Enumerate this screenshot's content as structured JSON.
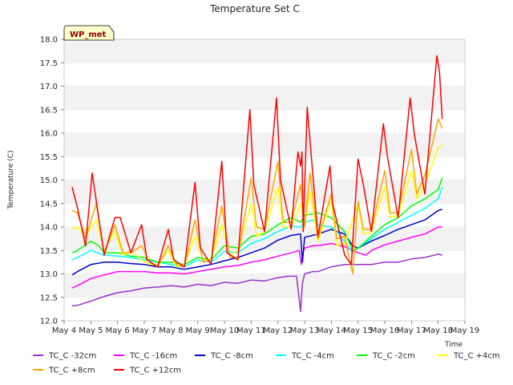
{
  "chart_data": {
    "type": "line",
    "title": "Temperature Set C",
    "xlabel": "Time",
    "ylabel": "Temperature (C)",
    "badge": "WP_met",
    "ylim": [
      12.0,
      18.0
    ],
    "xlim": [
      4,
      19
    ],
    "x_tick_labels": [
      "May 4",
      "May 5",
      "May 6",
      "May 7",
      "May 8",
      "May 9",
      "May 10",
      "May 11",
      "May 12",
      "May 13",
      "May 14",
      "May 15",
      "May 16",
      "May 17",
      "May 18",
      "May 19"
    ],
    "y_ticks": [
      12.0,
      12.5,
      13.0,
      13.5,
      14.0,
      14.5,
      15.0,
      15.5,
      16.0,
      16.5,
      17.0,
      17.5,
      18.0
    ],
    "y_tick_labels": [
      "12.0",
      "12.5",
      "13.0",
      "13.5",
      "14.0",
      "14.5",
      "15.0",
      "15.5",
      "16.0",
      "16.5",
      "17.0",
      "17.5",
      "18.0"
    ],
    "grid": "horizontal bands",
    "legend_position": "bottom",
    "x_unit": "day of May",
    "series": [
      {
        "name": "TC_C -32cm",
        "color": "#9933cc",
        "x": [
          4.3,
          4.5,
          5.0,
          5.5,
          6.0,
          6.5,
          7.0,
          7.5,
          8.0,
          8.5,
          9.0,
          9.5,
          10.0,
          10.5,
          11.0,
          11.5,
          12.0,
          12.4,
          12.7,
          12.85,
          12.92,
          13.0,
          13.3,
          13.5,
          14.0,
          14.5,
          15.0,
          15.5,
          16.0,
          16.5,
          17.0,
          17.5,
          18.0,
          18.15
        ],
        "y": [
          12.32,
          12.33,
          12.42,
          12.52,
          12.6,
          12.64,
          12.7,
          12.72,
          12.75,
          12.72,
          12.78,
          12.75,
          12.82,
          12.8,
          12.87,
          12.85,
          12.92,
          12.95,
          12.95,
          12.2,
          12.8,
          13.0,
          13.05,
          13.05,
          13.15,
          13.2,
          13.2,
          13.2,
          13.25,
          13.25,
          13.32,
          13.35,
          13.42,
          13.4
        ]
      },
      {
        "name": "TC_C -16cm",
        "color": "#ff00ff",
        "x": [
          4.3,
          4.5,
          5.0,
          5.5,
          6.0,
          6.5,
          7.0,
          7.5,
          8.0,
          8.5,
          9.0,
          9.5,
          10.0,
          10.5,
          11.0,
          11.5,
          12.0,
          12.5,
          12.8,
          12.88,
          12.95,
          13.0,
          13.3,
          13.5,
          14.0,
          14.5,
          15.0,
          15.3,
          15.5,
          16.0,
          16.5,
          17.0,
          17.5,
          18.0,
          18.15
        ],
        "y": [
          12.7,
          12.75,
          12.9,
          12.98,
          13.05,
          13.05,
          13.05,
          13.02,
          13.02,
          13.0,
          13.05,
          13.1,
          13.15,
          13.18,
          13.25,
          13.3,
          13.38,
          13.45,
          13.5,
          13.2,
          13.48,
          13.55,
          13.6,
          13.6,
          13.65,
          13.58,
          13.45,
          13.4,
          13.5,
          13.62,
          13.7,
          13.78,
          13.85,
          14.0,
          14.0
        ]
      },
      {
        "name": "TC_C -8cm",
        "color": "#0000cc",
        "x": [
          4.3,
          4.5,
          5.0,
          5.5,
          6.0,
          6.5,
          7.0,
          7.5,
          8.0,
          8.5,
          9.0,
          9.5,
          10.0,
          10.5,
          11.0,
          11.5,
          12.0,
          12.5,
          12.85,
          12.92,
          13.0,
          13.5,
          14.0,
          14.5,
          14.8,
          15.0,
          15.5,
          16.0,
          16.5,
          17.0,
          17.5,
          18.0,
          18.15
        ],
        "y": [
          12.98,
          13.05,
          13.2,
          13.25,
          13.25,
          13.22,
          13.2,
          13.15,
          13.15,
          13.1,
          13.15,
          13.2,
          13.28,
          13.35,
          13.45,
          13.55,
          13.72,
          13.82,
          13.85,
          13.25,
          13.78,
          13.85,
          13.95,
          13.85,
          13.6,
          13.55,
          13.7,
          13.82,
          13.95,
          14.05,
          14.15,
          14.35,
          14.38
        ]
      },
      {
        "name": "TC_C -4cm",
        "color": "#00ffff",
        "x": [
          4.3,
          4.5,
          5.0,
          5.5,
          6.0,
          6.5,
          7.0,
          7.5,
          8.0,
          8.5,
          9.0,
          9.5,
          10.0,
          10.5,
          11.0,
          11.5,
          12.0,
          12.5,
          12.85,
          13.0,
          13.3,
          13.5,
          14.0,
          14.3,
          14.6,
          14.8,
          15.0,
          15.5,
          16.0,
          16.5,
          17.0,
          17.5,
          18.0,
          18.15
        ],
        "y": [
          13.3,
          13.35,
          13.5,
          13.4,
          13.38,
          13.35,
          13.3,
          13.25,
          13.2,
          13.15,
          13.3,
          13.25,
          13.48,
          13.45,
          13.65,
          13.75,
          13.9,
          14.02,
          14.0,
          14.1,
          14.15,
          14.05,
          14.0,
          13.85,
          13.6,
          13.45,
          13.55,
          13.75,
          13.95,
          14.1,
          14.25,
          14.4,
          14.6,
          14.85
        ]
      },
      {
        "name": "TC_C -2cm",
        "color": "#00ff00",
        "x": [
          4.3,
          4.5,
          5.0,
          5.3,
          5.5,
          6.0,
          6.5,
          7.0,
          7.5,
          8.0,
          8.5,
          9.0,
          9.5,
          10.0,
          10.5,
          11.0,
          11.5,
          12.0,
          12.5,
          12.85,
          13.0,
          13.5,
          14.0,
          14.5,
          14.8,
          15.0,
          15.5,
          16.0,
          16.5,
          17.0,
          17.5,
          18.0,
          18.15
        ],
        "y": [
          13.45,
          13.5,
          13.7,
          13.6,
          13.45,
          13.45,
          13.38,
          13.35,
          13.25,
          13.25,
          13.2,
          13.35,
          13.3,
          13.6,
          13.55,
          13.8,
          13.85,
          14.05,
          14.2,
          14.1,
          14.25,
          14.3,
          14.2,
          13.9,
          13.5,
          13.55,
          13.8,
          14.05,
          14.2,
          14.45,
          14.6,
          14.8,
          15.05
        ]
      },
      {
        "name": "TC_C +4cm",
        "color": "#ffff00",
        "x": [
          4.3,
          4.5,
          4.8,
          5.2,
          5.5,
          5.9,
          6.2,
          6.5,
          6.9,
          7.2,
          7.5,
          7.9,
          8.2,
          8.5,
          8.9,
          9.2,
          9.5,
          9.9,
          10.2,
          10.5,
          11.0,
          11.2,
          11.5,
          12.0,
          12.2,
          12.5,
          12.85,
          13.0,
          13.2,
          13.5,
          14.0,
          14.2,
          14.5,
          15.0,
          15.2,
          15.5,
          16.0,
          16.2,
          16.5,
          17.0,
          17.2,
          17.5,
          18.0,
          18.15
        ],
        "y": [
          13.95,
          14.0,
          13.8,
          14.15,
          13.5,
          13.9,
          13.4,
          13.5,
          13.3,
          13.2,
          13.2,
          13.5,
          13.15,
          13.2,
          13.8,
          13.3,
          13.3,
          14.05,
          13.4,
          13.5,
          14.5,
          13.8,
          13.9,
          14.85,
          14.0,
          14.0,
          14.5,
          14.05,
          14.75,
          13.7,
          14.6,
          13.6,
          13.65,
          14.5,
          13.85,
          13.9,
          14.85,
          14.2,
          14.25,
          15.2,
          14.6,
          14.9,
          15.7,
          15.75
        ]
      },
      {
        "name": "TC_C +8cm",
        "color": "#ffa500",
        "x": [
          4.3,
          4.5,
          4.8,
          5.2,
          5.5,
          5.9,
          6.2,
          6.5,
          6.9,
          7.2,
          7.5,
          7.9,
          8.2,
          8.5,
          8.9,
          9.2,
          9.5,
          9.9,
          10.2,
          10.5,
          11.0,
          11.2,
          11.5,
          12.0,
          12.2,
          12.5,
          12.85,
          13.0,
          13.2,
          13.5,
          14.0,
          14.2,
          14.5,
          14.8,
          15.0,
          15.2,
          15.5,
          16.0,
          16.2,
          16.5,
          17.0,
          17.2,
          17.5,
          18.0,
          18.15
        ],
        "y": [
          14.35,
          14.3,
          13.75,
          14.5,
          13.45,
          14.05,
          13.45,
          13.45,
          13.6,
          13.25,
          13.15,
          13.6,
          13.2,
          13.15,
          14.15,
          13.25,
          13.3,
          14.45,
          13.35,
          13.35,
          15.05,
          14.0,
          13.95,
          15.4,
          14.1,
          14.1,
          14.9,
          14.0,
          15.15,
          13.75,
          14.7,
          13.75,
          13.8,
          13.0,
          14.55,
          13.95,
          13.95,
          15.2,
          14.3,
          14.3,
          15.65,
          14.7,
          15.1,
          16.3,
          16.1
        ]
      },
      {
        "name": "TC_C +12cm",
        "color": "#ff0000",
        "x": [
          4.3,
          4.5,
          4.8,
          5.05,
          5.5,
          5.9,
          6.1,
          6.5,
          6.9,
          7.1,
          7.5,
          7.9,
          8.1,
          8.5,
          8.9,
          9.1,
          9.5,
          9.9,
          10.1,
          10.5,
          10.95,
          11.1,
          11.5,
          11.95,
          12.1,
          12.5,
          12.75,
          12.85,
          12.9,
          12.95,
          13.1,
          13.5,
          13.95,
          14.05,
          14.5,
          14.75,
          15.0,
          15.2,
          15.5,
          15.95,
          16.1,
          16.5,
          16.95,
          17.1,
          17.5,
          17.95,
          18.05,
          18.15
        ],
        "y": [
          14.85,
          14.4,
          13.6,
          15.15,
          13.4,
          14.2,
          14.2,
          13.45,
          14.05,
          13.3,
          13.15,
          13.95,
          13.3,
          13.15,
          14.95,
          13.55,
          13.2,
          15.4,
          13.45,
          13.3,
          16.5,
          14.9,
          13.9,
          16.75,
          15.0,
          13.95,
          15.6,
          15.3,
          15.6,
          13.9,
          16.55,
          13.8,
          15.3,
          14.5,
          13.4,
          13.2,
          15.45,
          14.9,
          13.9,
          16.2,
          15.5,
          14.2,
          16.75,
          16.0,
          14.7,
          17.65,
          17.3,
          16.3
        ]
      }
    ]
  }
}
